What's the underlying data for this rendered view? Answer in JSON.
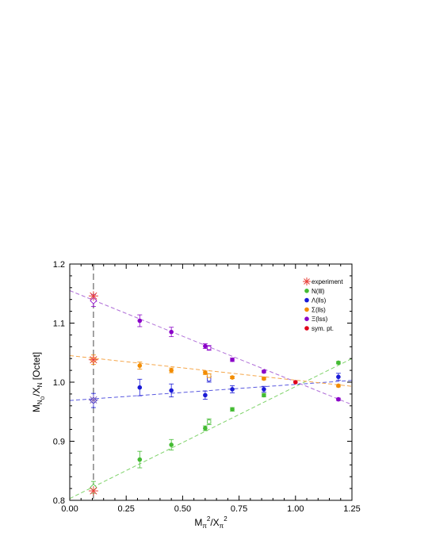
{
  "chart_data": {
    "type": "scatter",
    "title": "",
    "xlabel": {
      "main": "M",
      "sub1": "π",
      "sup1": "2",
      "mid": "/X",
      "sub2": "π",
      "sup2": "2"
    },
    "ylabel": {
      "main": "M",
      "sub1": "N",
      "subsub": "O",
      "mid": "/X",
      "sub2": "N",
      "tail": " [Octet]"
    },
    "xlim": [
      0.0,
      1.25
    ],
    "ylim": [
      0.8,
      1.2
    ],
    "x_ticks": [
      0.0,
      0.25,
      0.5,
      0.75,
      1.0,
      1.25
    ],
    "x_tick_labels": [
      "0.00",
      "0.25",
      "0.50",
      "0.75",
      "1.00",
      "1.25"
    ],
    "y_ticks": [
      0.8,
      0.9,
      1.0,
      1.1,
      1.2
    ],
    "y_tick_labels": [
      "0.8",
      "0.9",
      "1.0",
      "1.1",
      "1.2"
    ],
    "vertical_line_x": 0.105,
    "legend_placement": "top-right",
    "legend": [
      {
        "label": "experiment",
        "marker": "asterisk",
        "color": "#e8413a"
      },
      {
        "label": "N(lll)",
        "marker": "dot",
        "color": "#44bb33"
      },
      {
        "label": "Λ(lls)",
        "marker": "dot",
        "color": "#1a1ad6"
      },
      {
        "label": "Σ(lls)",
        "marker": "dot",
        "color": "#f28c00"
      },
      {
        "label": "Ξ(lss)",
        "marker": "dot",
        "color": "#8a00c8"
      },
      {
        "label": "sym. pt.",
        "marker": "dot",
        "color": "#e0001a"
      }
    ],
    "experiment": [
      {
        "x": 0.105,
        "y": 1.146,
        "color": "#e8413a"
      },
      {
        "x": 0.105,
        "y": 1.038,
        "color": "#e8413a"
      },
      {
        "x": 0.105,
        "y": 0.97,
        "color": "#8a6ab8"
      },
      {
        "x": 0.105,
        "y": 0.816,
        "color": "#e8413a"
      }
    ],
    "series": [
      {
        "name": "N(lll)",
        "color": "#44bb33",
        "fit_color": "#7fd36a",
        "x": [
          0.31,
          0.45,
          0.6,
          0.72,
          0.86,
          1.19
        ],
        "y": [
          0.869,
          0.894,
          0.922,
          0.954,
          0.978,
          1.033
        ],
        "err": [
          0.014,
          0.009,
          0.004,
          0.003,
          0.003,
          0.002
        ],
        "fit": [
          [
            0.0,
            0.803
          ],
          [
            1.25,
            1.04
          ]
        ],
        "extrapolated": [
          {
            "x": 0.105,
            "y": 0.822,
            "err": 0.01
          }
        ],
        "open_points": [
          {
            "x": 0.617,
            "y": 0.933,
            "err": 0.005
          }
        ]
      },
      {
        "name": "Λ(lls)",
        "color": "#1a1ad6",
        "fit_color": "#5a5ae0",
        "x": [
          0.31,
          0.45,
          0.6,
          0.72,
          0.86,
          1.19
        ],
        "y": [
          0.991,
          0.986,
          0.978,
          0.988,
          0.988,
          1.009
        ],
        "err": [
          0.014,
          0.011,
          0.007,
          0.006,
          0.005,
          0.006
        ],
        "fit": [
          [
            0.0,
            0.969
          ],
          [
            1.25,
            1.003
          ]
        ],
        "extrapolated": [
          {
            "x": 0.105,
            "y": 0.969,
            "err": 0.012
          }
        ],
        "open_points": [
          {
            "x": 0.617,
            "y": 1.005,
            "err": 0.005
          }
        ]
      },
      {
        "name": "Σ(lls)",
        "color": "#f28c00",
        "fit_color": "#f5a64a",
        "x": [
          0.31,
          0.45,
          0.6,
          0.72,
          0.86,
          1.19
        ],
        "y": [
          1.028,
          1.02,
          1.016,
          1.008,
          1.006,
          0.994
        ],
        "err": [
          0.006,
          0.004,
          0.003,
          0.002,
          0.002,
          0.002
        ],
        "fit": [
          [
            0.0,
            1.045
          ],
          [
            1.25,
            0.993
          ]
        ],
        "extrapolated": [
          {
            "x": 0.105,
            "y": 1.038,
            "err": 0.008
          }
        ],
        "open_points": [
          {
            "x": 0.617,
            "y": 1.011,
            "err": 0.003
          }
        ]
      },
      {
        "name": "Ξ(lss)",
        "color": "#8a00c8",
        "fit_color": "#b070d8",
        "x": [
          0.31,
          0.45,
          0.6,
          0.72,
          0.86,
          1.19
        ],
        "y": [
          1.104,
          1.085,
          1.061,
          1.038,
          1.018,
          0.971
        ],
        "err": [
          0.01,
          0.008,
          0.004,
          0.003,
          0.002,
          0.002
        ],
        "fit": [
          [
            0.0,
            1.155
          ],
          [
            1.25,
            0.962
          ]
        ],
        "extrapolated": [
          {
            "x": 0.105,
            "y": 1.138,
            "err": 0.01
          }
        ],
        "open_points": [
          {
            "x": 0.617,
            "y": 1.058,
            "err": 0.004
          }
        ]
      },
      {
        "name": "sym. pt.",
        "color": "#e0001a",
        "x": [
          1.0
        ],
        "y": [
          1.0
        ],
        "err": [
          0
        ]
      }
    ]
  }
}
